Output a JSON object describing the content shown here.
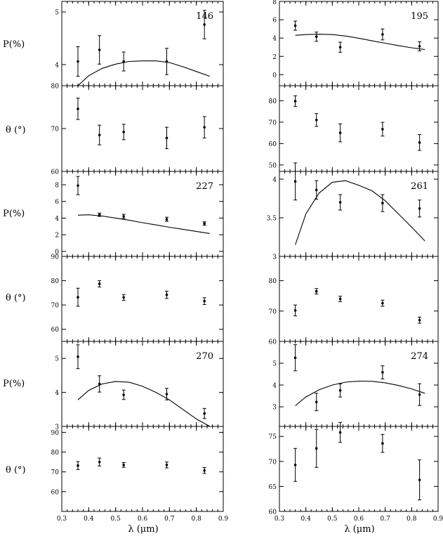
{
  "figure": {
    "xlabel": "λ (μm)",
    "ylabel_p": "P(%)",
    "ylabel_theta": "θ (°)",
    "x_range": [
      0.3,
      0.9
    ],
    "x_ticks": [
      0.3,
      0.4,
      0.5,
      0.6,
      0.7,
      0.8,
      0.9
    ]
  },
  "chart_data": [
    {
      "type": "scatter",
      "id": "146-P",
      "column": 0,
      "row": 0,
      "label": "146",
      "ylim": [
        3.6,
        5.2
      ],
      "yticks": [
        4,
        5
      ],
      "yticklabels": [
        "4",
        "5"
      ],
      "points": [
        {
          "x": 0.36,
          "y": 4.06,
          "err": 0.28
        },
        {
          "x": 0.44,
          "y": 4.28,
          "err": 0.27
        },
        {
          "x": 0.53,
          "y": 4.06,
          "err": 0.18
        },
        {
          "x": 0.69,
          "y": 4.06,
          "err": 0.25
        },
        {
          "x": 0.83,
          "y": 4.76,
          "err": 0.27
        }
      ],
      "model": {
        "x": [
          0.36,
          0.4,
          0.45,
          0.5,
          0.55,
          0.6,
          0.65,
          0.7,
          0.75,
          0.8,
          0.85
        ],
        "y": [
          3.6,
          3.79,
          3.93,
          4.01,
          4.06,
          4.07,
          4.07,
          4.04,
          3.96,
          3.87,
          3.78
        ]
      }
    },
    {
      "type": "scatter",
      "id": "146-theta",
      "column": 0,
      "row": 1,
      "ylim": [
        60,
        80
      ],
      "yticks": [
        60,
        70,
        80
      ],
      "yticklabels": [
        "60",
        "70",
        "80"
      ],
      "points": [
        {
          "x": 0.36,
          "y": 74.6,
          "err": 2.5
        },
        {
          "x": 0.44,
          "y": 68.5,
          "err": 2.3
        },
        {
          "x": 0.53,
          "y": 69.2,
          "err": 1.8
        },
        {
          "x": 0.69,
          "y": 67.8,
          "err": 2.5
        },
        {
          "x": 0.83,
          "y": 70.3,
          "err": 2.5
        }
      ]
    },
    {
      "type": "scatter",
      "id": "227-P",
      "column": 0,
      "row": 2,
      "label": "227",
      "ylim": [
        -0.6,
        9.6
      ],
      "yticks": [
        0,
        2,
        4,
        6,
        8
      ],
      "yticklabels": [
        "0",
        "2",
        "4",
        "6",
        "8"
      ],
      "points": [
        {
          "x": 0.36,
          "y": 7.9,
          "err": 1.1
        },
        {
          "x": 0.44,
          "y": 4.4,
          "err": 0.2
        },
        {
          "x": 0.53,
          "y": 4.2,
          "err": 0.25
        },
        {
          "x": 0.69,
          "y": 3.85,
          "err": 0.25
        },
        {
          "x": 0.83,
          "y": 3.35,
          "err": 0.2
        }
      ],
      "model": {
        "x": [
          0.36,
          0.4,
          0.45,
          0.5,
          0.55,
          0.6,
          0.65,
          0.7,
          0.75,
          0.8,
          0.85
        ],
        "y": [
          4.35,
          4.4,
          4.25,
          4.0,
          3.75,
          3.45,
          3.18,
          2.9,
          2.65,
          2.4,
          2.15
        ]
      }
    },
    {
      "type": "scatter",
      "id": "227-theta",
      "column": 0,
      "row": 3,
      "ylim": [
        55,
        90
      ],
      "yticks": [
        60,
        70,
        80,
        90
      ],
      "yticklabels": [
        "60",
        "70",
        "80",
        "90"
      ],
      "points": [
        {
          "x": 0.36,
          "y": 73.2,
          "err": 3.7
        },
        {
          "x": 0.44,
          "y": 78.7,
          "err": 1.3
        },
        {
          "x": 0.53,
          "y": 73.1,
          "err": 1.2
        },
        {
          "x": 0.69,
          "y": 74.2,
          "err": 1.5
        },
        {
          "x": 0.83,
          "y": 71.6,
          "err": 1.4
        }
      ]
    },
    {
      "type": "scatter",
      "id": "270-P",
      "column": 0,
      "row": 4,
      "label": "270",
      "ylim": [
        3.0,
        5.5
      ],
      "yticks": [
        3,
        4,
        5
      ],
      "yticklabels": [
        "3",
        "4",
        "5"
      ],
      "points": [
        {
          "x": 0.36,
          "y": 5.05,
          "err": 0.35
        },
        {
          "x": 0.44,
          "y": 4.25,
          "err": 0.24
        },
        {
          "x": 0.53,
          "y": 3.93,
          "err": 0.14
        },
        {
          "x": 0.69,
          "y": 3.95,
          "err": 0.17
        },
        {
          "x": 0.83,
          "y": 3.38,
          "err": 0.15
        }
      ],
      "model": {
        "x": [
          0.36,
          0.4,
          0.45,
          0.5,
          0.55,
          0.6,
          0.65,
          0.7,
          0.75,
          0.8,
          0.85
        ],
        "y": [
          3.78,
          4.06,
          4.25,
          4.32,
          4.3,
          4.18,
          4.0,
          3.78,
          3.5,
          3.22,
          3.0
        ]
      }
    },
    {
      "type": "scatter",
      "id": "270-theta",
      "column": 0,
      "row": 5,
      "ylim": [
        50,
        93
      ],
      "yticks": [
        60,
        70,
        80,
        90
      ],
      "yticklabels": [
        "60",
        "70",
        "80",
        "90"
      ],
      "points": [
        {
          "x": 0.36,
          "y": 73.2,
          "err": 2.0
        },
        {
          "x": 0.44,
          "y": 75.0,
          "err": 2.0
        },
        {
          "x": 0.53,
          "y": 73.5,
          "err": 1.2
        },
        {
          "x": 0.69,
          "y": 73.5,
          "err": 1.5
        },
        {
          "x": 0.83,
          "y": 70.7,
          "err": 1.5
        }
      ]
    },
    {
      "type": "scatter",
      "id": "195-P",
      "column": 1,
      "row": 0,
      "label": "195",
      "ylim": [
        -1.2,
        8
      ],
      "yticks": [
        0,
        2,
        4,
        6,
        8
      ],
      "yticklabels": [
        "0",
        "2",
        "4",
        "6",
        "8"
      ],
      "points": [
        {
          "x": 0.36,
          "y": 5.35,
          "err": 0.5
        },
        {
          "x": 0.44,
          "y": 4.15,
          "err": 0.5
        },
        {
          "x": 0.53,
          "y": 3.0,
          "err": 0.55
        },
        {
          "x": 0.69,
          "y": 4.4,
          "err": 0.6
        },
        {
          "x": 0.83,
          "y": 3.1,
          "err": 0.5
        }
      ],
      "model": {
        "x": [
          0.36,
          0.4,
          0.45,
          0.5,
          0.55,
          0.6,
          0.65,
          0.7,
          0.75,
          0.8,
          0.85
        ],
        "y": [
          4.3,
          4.38,
          4.42,
          4.38,
          4.22,
          3.98,
          3.7,
          3.44,
          3.18,
          2.94,
          2.74
        ]
      }
    },
    {
      "type": "scatter",
      "id": "195-theta",
      "column": 1,
      "row": 1,
      "ylim": [
        47,
        87
      ],
      "yticks": [
        50,
        60,
        70,
        80
      ],
      "yticklabels": [
        "50",
        "60",
        "70",
        "80"
      ],
      "points": [
        {
          "x": 0.36,
          "y": 79.8,
          "err": 2.5
        },
        {
          "x": 0.44,
          "y": 71.0,
          "err": 3.0
        },
        {
          "x": 0.53,
          "y": 65.0,
          "err": 4.2
        },
        {
          "x": 0.69,
          "y": 66.7,
          "err": 3.2
        },
        {
          "x": 0.83,
          "y": 60.5,
          "err": 3.7
        }
      ]
    },
    {
      "type": "scatter",
      "id": "261-P",
      "column": 1,
      "row": 2,
      "label": "261",
      "ylim": [
        3.0,
        4.1
      ],
      "yticks": [
        3,
        3.5,
        4
      ],
      "yticklabels": [
        "3",
        "3.5",
        "4"
      ],
      "points": [
        {
          "x": 0.36,
          "y": 3.97,
          "err": 0.24
        },
        {
          "x": 0.44,
          "y": 3.86,
          "err": 0.12
        },
        {
          "x": 0.53,
          "y": 3.7,
          "err": 0.1
        },
        {
          "x": 0.69,
          "y": 3.69,
          "err": 0.11
        },
        {
          "x": 0.83,
          "y": 3.62,
          "err": 0.11
        }
      ],
      "model": {
        "x": [
          0.36,
          0.4,
          0.45,
          0.5,
          0.55,
          0.6,
          0.65,
          0.7,
          0.75,
          0.8,
          0.85
        ],
        "y": [
          3.15,
          3.55,
          3.82,
          3.96,
          3.98,
          3.92,
          3.85,
          3.72,
          3.55,
          3.38,
          3.2
        ]
      }
    },
    {
      "type": "scatter",
      "id": "261-theta",
      "column": 1,
      "row": 3,
      "ylim": [
        60,
        88
      ],
      "yticks": [
        60,
        70,
        80
      ],
      "yticklabels": [
        "60",
        "70",
        "80"
      ],
      "points": [
        {
          "x": 0.36,
          "y": 70.2,
          "err": 1.8
        },
        {
          "x": 0.44,
          "y": 76.5,
          "err": 0.9
        },
        {
          "x": 0.53,
          "y": 74.0,
          "err": 0.9
        },
        {
          "x": 0.69,
          "y": 72.6,
          "err": 1.0
        },
        {
          "x": 0.83,
          "y": 67.0,
          "err": 1.0
        }
      ]
    },
    {
      "type": "scatter",
      "id": "274-P",
      "column": 1,
      "row": 4,
      "label": "274",
      "ylim": [
        2.1,
        6.0
      ],
      "yticks": [
        3,
        4,
        5
      ],
      "yticklabels": [
        "3",
        "4",
        "5"
      ],
      "points": [
        {
          "x": 0.36,
          "y": 5.25,
          "err": 0.6
        },
        {
          "x": 0.44,
          "y": 3.22,
          "err": 0.4
        },
        {
          "x": 0.53,
          "y": 3.75,
          "err": 0.3
        },
        {
          "x": 0.69,
          "y": 4.58,
          "err": 0.3
        },
        {
          "x": 0.83,
          "y": 3.56,
          "err": 0.5
        }
      ],
      "model": {
        "x": [
          0.36,
          0.4,
          0.45,
          0.5,
          0.55,
          0.6,
          0.65,
          0.7,
          0.75,
          0.8,
          0.85
        ],
        "y": [
          3.05,
          3.45,
          3.78,
          4.0,
          4.13,
          4.18,
          4.17,
          4.1,
          3.98,
          3.82,
          3.62
        ]
      }
    },
    {
      "type": "scatter",
      "id": "274-theta",
      "column": 1,
      "row": 5,
      "ylim": [
        60,
        77
      ],
      "yticks": [
        60,
        65,
        70,
        75
      ],
      "yticklabels": [
        "60",
        "65",
        "70",
        "75"
      ],
      "points": [
        {
          "x": 0.36,
          "y": 69.3,
          "err": 3.3
        },
        {
          "x": 0.44,
          "y": 72.6,
          "err": 3.8
        },
        {
          "x": 0.53,
          "y": 75.8,
          "err": 2.0
        },
        {
          "x": 0.69,
          "y": 73.6,
          "err": 1.8
        },
        {
          "x": 0.83,
          "y": 66.3,
          "err": 4.0
        }
      ]
    }
  ]
}
